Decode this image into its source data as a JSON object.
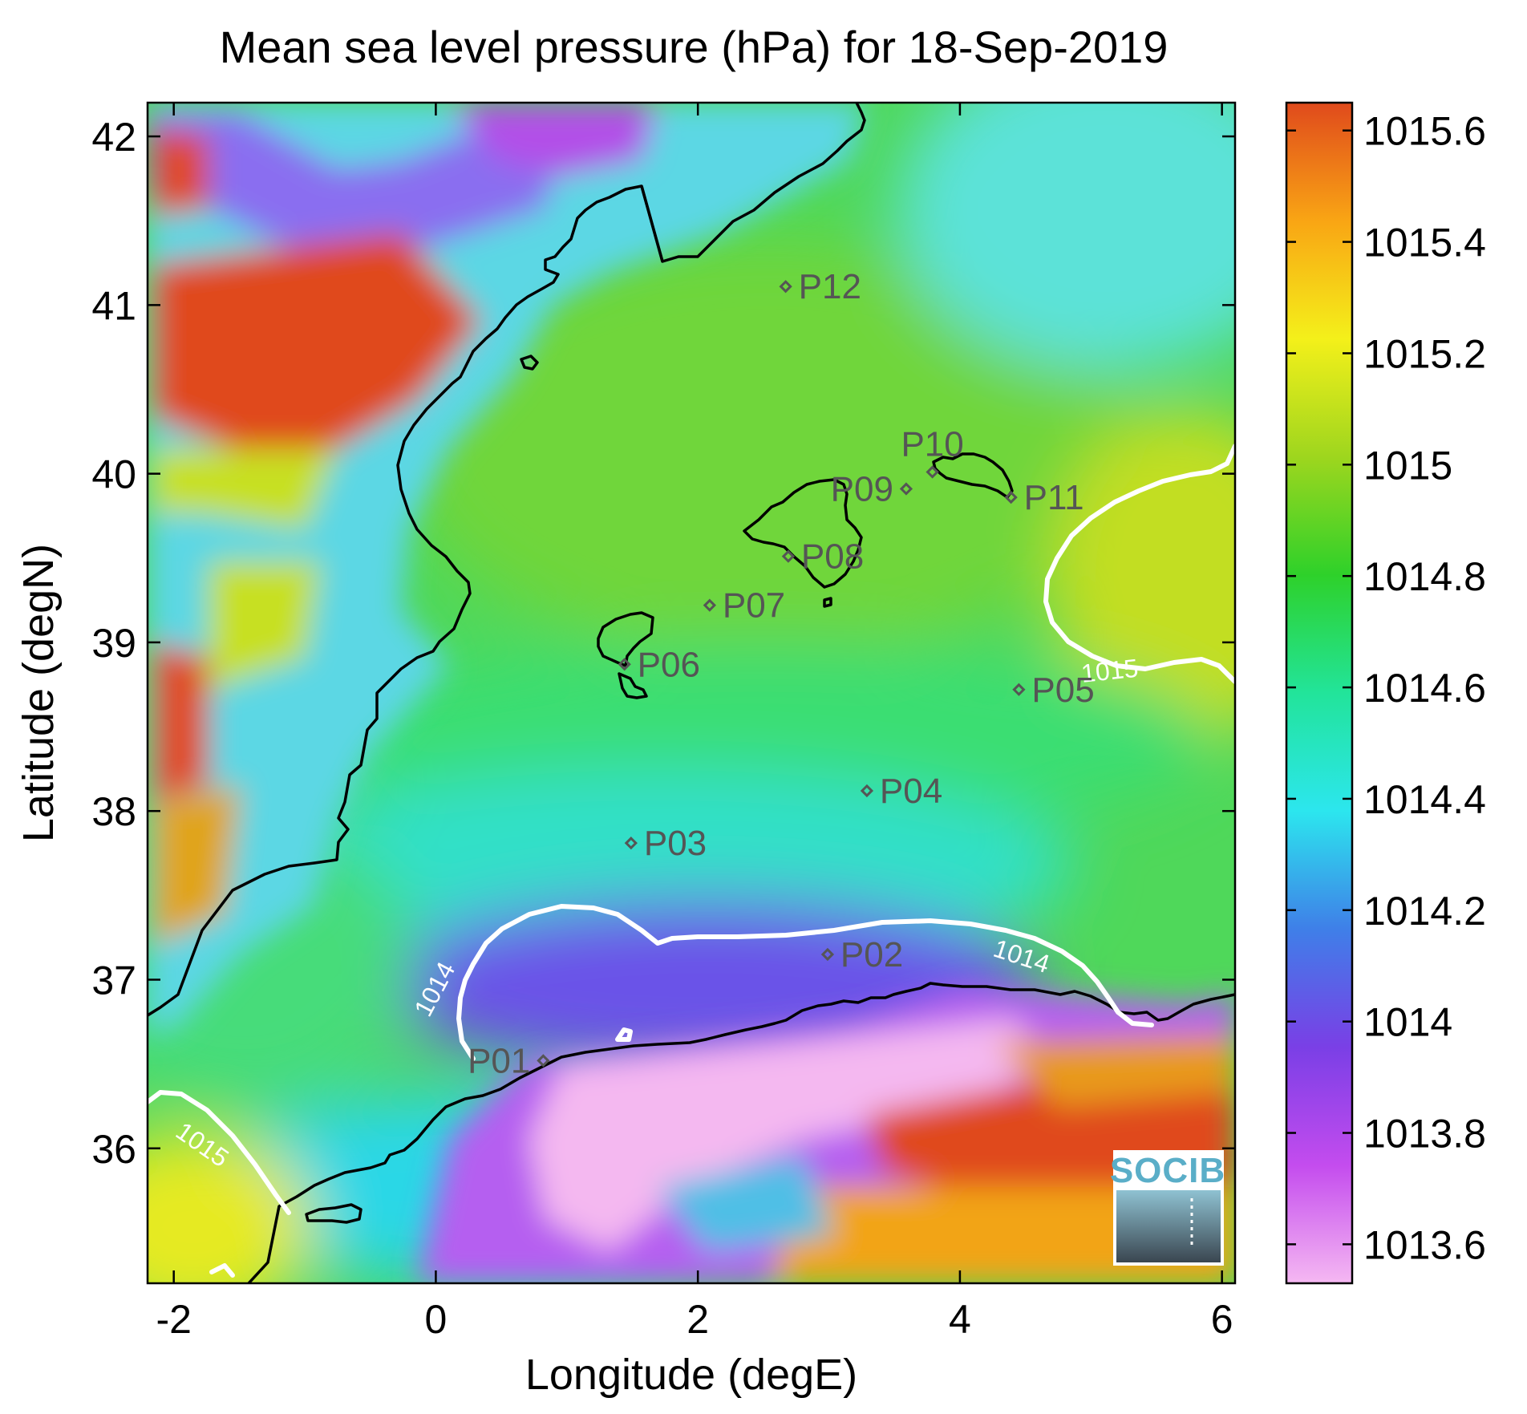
{
  "title": "Mean sea level pressure (hPa) for 18-Sep-2019",
  "xlabel": "Longitude (degE)",
  "ylabel": "Latitude (degN)",
  "xlim": [
    -2.2,
    6.1
  ],
  "ylim": [
    35.2,
    42.2
  ],
  "xticks": [
    -2,
    0,
    2,
    4,
    6
  ],
  "yticks": [
    36,
    37,
    38,
    39,
    40,
    41,
    42
  ],
  "xtick_labels": [
    "-2",
    "0",
    "2",
    "4",
    "6"
  ],
  "ytick_labels": [
    "36",
    "37",
    "38",
    "39",
    "40",
    "41",
    "42"
  ],
  "colorbar": {
    "min": 1013.53,
    "max": 1015.65,
    "ticks": [
      1013.6,
      1013.8,
      1014,
      1014.2,
      1014.4,
      1014.6,
      1014.8,
      1015,
      1015.2,
      1015.4,
      1015.6
    ],
    "tick_labels": [
      "1013.6",
      "1013.8",
      "1014",
      "1014.2",
      "1014.4",
      "1014.6",
      "1014.8",
      "1015",
      "1015.2",
      "1015.4",
      "1015.6"
    ],
    "colormap": [
      "#f5b8f2",
      "#c44cee",
      "#7a3fe6",
      "#3f7fe8",
      "#2ce6ee",
      "#22e49a",
      "#2ed12a",
      "#9ed61e",
      "#f4f01a",
      "#f9a514",
      "#e04a1c"
    ]
  },
  "contour_labels": [
    {
      "text": "1014",
      "lon": 0.05,
      "lat": 36.92,
      "angle": -62
    },
    {
      "text": "1014",
      "lon": 4.45,
      "lat": 37.09,
      "angle": 18
    },
    {
      "text": "1015",
      "lon": 5.15,
      "lat": 38.78,
      "angle": -6
    },
    {
      "text": "1015",
      "lon": -1.82,
      "lat": 35.98,
      "angle": 35
    }
  ],
  "stations": [
    {
      "name": "P01",
      "lon": 0.82,
      "lat": 36.52,
      "label_side": "left"
    },
    {
      "name": "P02",
      "lon": 2.99,
      "lat": 37.15,
      "label_side": "right"
    },
    {
      "name": "P03",
      "lon": 1.49,
      "lat": 37.81,
      "label_side": "right"
    },
    {
      "name": "P04",
      "lon": 3.29,
      "lat": 38.12,
      "label_side": "right"
    },
    {
      "name": "P05",
      "lon": 4.45,
      "lat": 38.72,
      "label_side": "right"
    },
    {
      "name": "P06",
      "lon": 1.44,
      "lat": 38.87,
      "label_side": "right"
    },
    {
      "name": "P07",
      "lon": 2.09,
      "lat": 39.22,
      "label_side": "right"
    },
    {
      "name": "P08",
      "lon": 2.69,
      "lat": 39.51,
      "label_side": "right"
    },
    {
      "name": "P09",
      "lon": 3.59,
      "lat": 39.91,
      "label_side": "left"
    },
    {
      "name": "P10",
      "lon": 3.79,
      "lat": 40.01,
      "label_side": "above"
    },
    {
      "name": "P11",
      "lon": 4.39,
      "lat": 39.86,
      "label_side": "right"
    },
    {
      "name": "P12",
      "lon": 2.67,
      "lat": 41.11,
      "label_side": "right"
    }
  ],
  "logo": {
    "text": "SOCIB",
    "color": "#5aaec8"
  },
  "colors": {
    "coastline": "#000000",
    "contour": "#ffffff",
    "station": "#555555"
  }
}
